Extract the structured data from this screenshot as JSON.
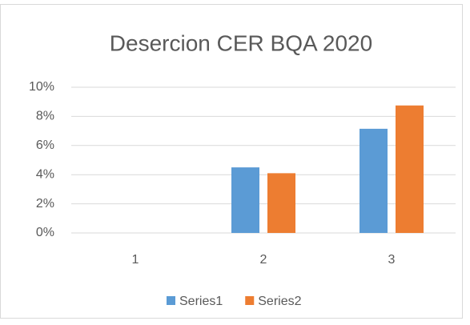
{
  "chart_data": {
    "type": "bar",
    "title": "Desercion CER BQA 2020",
    "categories": [
      "1",
      "2",
      "3"
    ],
    "series": [
      {
        "name": "Series1",
        "color": "#5b9bd5",
        "values": [
          0,
          4.5,
          7.15
        ]
      },
      {
        "name": "Series2",
        "color": "#ed7d31",
        "values": [
          0,
          4.1,
          8.75
        ]
      }
    ],
    "ylim": [
      0,
      10
    ],
    "yticks": [
      {
        "value": 0,
        "label": "0%"
      },
      {
        "value": 2,
        "label": "2%"
      },
      {
        "value": 4,
        "label": "4%"
      },
      {
        "value": 6,
        "label": "6%"
      },
      {
        "value": 8,
        "label": "8%"
      },
      {
        "value": 10,
        "label": "10%"
      }
    ],
    "grid": true,
    "legend": "bottom"
  }
}
